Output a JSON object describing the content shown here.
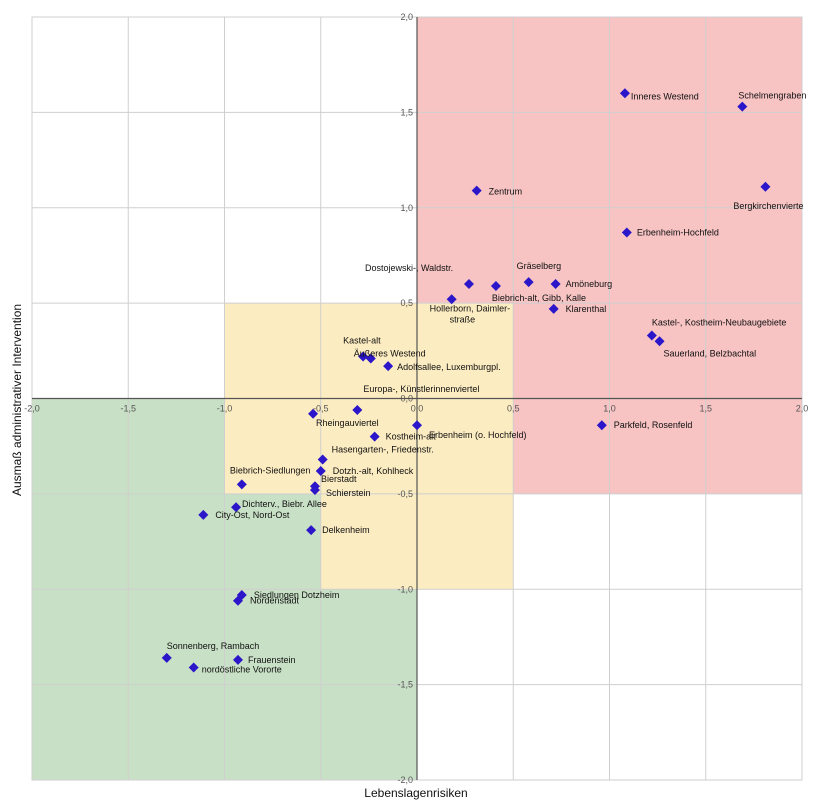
{
  "chart_data": {
    "type": "scatter",
    "xlabel": "Lebenslagenrisiken",
    "ylabel": "Ausmaß administrativer Intervention",
    "xlim": [
      -2.0,
      2.0
    ],
    "ylim": [
      -2.0,
      2.0
    ],
    "grid": true,
    "x_ticks": [
      -2.0,
      -1.5,
      -1.0,
      -0.5,
      0.0,
      0.5,
      1.0,
      1.5,
      2.0
    ],
    "y_ticks": [
      -2.0,
      -1.5,
      -1.0,
      -0.5,
      0.0,
      0.5,
      1.0,
      1.5,
      2.0
    ],
    "x_tick_labels": [
      "-2,0",
      "-1,5",
      "-1,0",
      "-0,5",
      "0,0",
      "0,5",
      "1,0",
      "1,5",
      "2,0"
    ],
    "y_tick_labels": [
      "-2,0",
      "-1,5",
      "-1,0",
      "-0,5",
      "0,0",
      "0,5",
      "1,0",
      "1,5",
      "2,0"
    ],
    "regions": [
      {
        "color": "#f7c3c3",
        "x": [
          0.0,
          2.0
        ],
        "y": [
          -0.5,
          2.0
        ]
      },
      {
        "color": "#c8e0c5",
        "x": [
          -2.0,
          0.0
        ],
        "y": [
          -2.0,
          0.0
        ]
      },
      {
        "color": "#fcecc1",
        "x": [
          -1.0,
          0.5
        ],
        "y": [
          -0.5,
          0.5
        ]
      },
      {
        "color": "#fcecc1",
        "x": [
          -0.5,
          0.5
        ],
        "y": [
          -1.0,
          0.0
        ]
      }
    ],
    "marker_color": "#2b16c9",
    "points": [
      {
        "label": "Schelmengraben",
        "x": 1.69,
        "y": 1.53
      },
      {
        "label": "Inneres Westend",
        "x": 1.08,
        "y": 1.6
      },
      {
        "label": "Bergkirchenvierte",
        "x": 1.81,
        "y": 1.11
      },
      {
        "label": "Zentrum",
        "x": 0.31,
        "y": 1.09
      },
      {
        "label": "Erbenheim-Hochfeld",
        "x": 1.09,
        "y": 0.87
      },
      {
        "label": "Dostojewski-, Waldstr.",
        "x": 0.27,
        "y": 0.6
      },
      {
        "label": "Gräselberg",
        "x": 0.58,
        "y": 0.61
      },
      {
        "label": "Amöneburg",
        "x": 0.72,
        "y": 0.6
      },
      {
        "label": "Biebrich-alt, Gibb, Kalle",
        "x": 0.41,
        "y": 0.59
      },
      {
        "label": "Hollerborn, Daimler-",
        "label2": "straße",
        "x": 0.18,
        "y": 0.52
      },
      {
        "label": "Klarenthal",
        "x": 0.71,
        "y": 0.47
      },
      {
        "label": "Kastel-, Kostheim-Neubaugebiete",
        "x": 1.22,
        "y": 0.33
      },
      {
        "label": "Sauerland, Belzbachtal",
        "x": 1.26,
        "y": 0.3
      },
      {
        "label": "Kastel-alt",
        "x": -0.28,
        "y": 0.22
      },
      {
        "label": "Äußeres Westend",
        "x": -0.24,
        "y": 0.21
      },
      {
        "label": "Adolfsallee, Luxemburgpl.",
        "x": -0.15,
        "y": 0.17
      },
      {
        "label": "Europa-, Künstlerinnenviertel",
        "x": -0.31,
        "y": -0.06
      },
      {
        "label": "Rheingauviertel",
        "x": -0.54,
        "y": -0.08
      },
      {
        "label": "Erbenheim (o. Hochfeld)",
        "x": 0.0,
        "y": -0.14
      },
      {
        "label": "Parkfeld, Rosenfeld",
        "x": 0.96,
        "y": -0.14
      },
      {
        "label": "Kostheim-alt",
        "x": -0.22,
        "y": -0.2
      },
      {
        "label": "Hasengarten-, Friedenstr.",
        "x": -0.49,
        "y": -0.32
      },
      {
        "label": "Dotzh.-alt, Kohlheck",
        "x": -0.5,
        "y": -0.38
      },
      {
        "label": "Biebrich-Siedlungen",
        "x": -0.91,
        "y": -0.45
      },
      {
        "label": "Bierstadt",
        "x": -0.53,
        "y": -0.46
      },
      {
        "label": "Schierstein",
        "x": -0.53,
        "y": -0.48
      },
      {
        "label": "Dichterv., Biebr. Allee",
        "x": -0.94,
        "y": -0.57
      },
      {
        "label": "City-Ost, Nord-Ost",
        "x": -1.11,
        "y": -0.61
      },
      {
        "label": "Delkenheim",
        "x": -0.55,
        "y": -0.69
      },
      {
        "label": "Siedlungen Dotzheim",
        "x": -0.91,
        "y": -1.03
      },
      {
        "label": "Nordenstadt",
        "x": -0.93,
        "y": -1.06
      },
      {
        "label": "Sonnenberg, Rambach",
        "x": -1.3,
        "y": -1.36
      },
      {
        "label": "Frauenstein",
        "x": -0.93,
        "y": -1.37
      },
      {
        "label": "nordöstliche Vororte",
        "x": -1.16,
        "y": -1.41
      }
    ]
  }
}
